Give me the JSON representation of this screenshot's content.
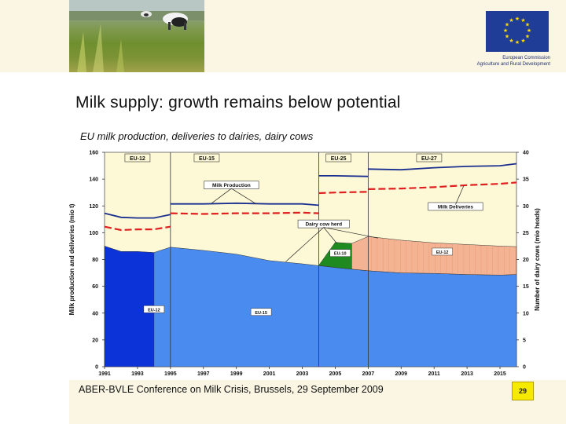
{
  "header": {
    "photo_alt": "cows grazing in pasture",
    "eu_logo_icon": "eu-flag-stars-icon",
    "eu_line1": "European Commission",
    "eu_line2": "Agriculture and Rural Development"
  },
  "slide": {
    "title": "Milk supply: growth remains below potential",
    "footer": "ABER-BVLE Conference on Milk Crisis, Brussels, 29 September 2009",
    "page_number": "29"
  },
  "chart_data": {
    "type": "area",
    "title": "EU milk production, deliveries to dairies, dairy cows",
    "ylabel": "Milk production and deliveries (mio t)",
    "y2label": "Number of dairy cows (mio heads)",
    "ylim": [
      0,
      160
    ],
    "y2lim": [
      0,
      40
    ],
    "yticks": [
      "0",
      "20",
      "40",
      "60",
      "80",
      "100",
      "120",
      "140",
      "160"
    ],
    "y2ticks": [
      "0",
      "5",
      "10",
      "15",
      "20",
      "25",
      "30",
      "35",
      "40"
    ],
    "xlim": [
      1991,
      2016
    ],
    "xticks": [
      "1991",
      "1993",
      "1995",
      "1997",
      "1999",
      "2001",
      "2003",
      "2005",
      "2007",
      "2009",
      "2011",
      "2013",
      "2015"
    ],
    "background": "#fdf9d6",
    "dividers": [
      1995,
      2004,
      2007
    ],
    "period_labels": [
      {
        "text": "EU-12",
        "x": 1993
      },
      {
        "text": "EU-15",
        "x": 1997.2
      },
      {
        "text": "EU-25",
        "x": 2005.2
      },
      {
        "text": "EU-27",
        "x": 2010.7
      }
    ],
    "area_labels": [
      {
        "text": "EU-12",
        "x": 1994,
        "y": 42
      },
      {
        "text": "EU-15",
        "x": 2000.5,
        "y": 40
      },
      {
        "text": "EU-10",
        "x": 2005.3,
        "y": 84
      },
      {
        "text": "EU-12",
        "x": 2011.5,
        "y": 85
      }
    ],
    "annotations": [
      {
        "text": "Milk Production",
        "x": 1998.7,
        "y": 135
      },
      {
        "text": "Milk Deliveries",
        "x": 2012.3,
        "y": 119
      },
      {
        "text": "Dairy cow herd",
        "x": 2004.3,
        "y": 106
      }
    ],
    "series": [
      {
        "name": "Milk Production",
        "segment": "EU-12",
        "kind": "line",
        "axis": "y",
        "color": "#1a2f8f",
        "x": [
          1991,
          1992,
          1993,
          1994,
          1995
        ],
        "y": [
          114.5,
          111.5,
          111.0,
          111.0,
          113.5
        ]
      },
      {
        "name": "Milk Production",
        "segment": "EU-15",
        "kind": "line",
        "axis": "y",
        "color": "#1a2f8f",
        "x": [
          1995,
          1997,
          1999,
          2001,
          2003,
          2004
        ],
        "y": [
          121.5,
          121.5,
          122.0,
          121.5,
          121.5,
          120.5
        ]
      },
      {
        "name": "Milk Production",
        "segment": "EU-25",
        "kind": "line",
        "axis": "y",
        "color": "#1a2f8f",
        "x": [
          2004,
          2005,
          2007
        ],
        "y": [
          142.5,
          142.5,
          142.0
        ]
      },
      {
        "name": "Milk Production",
        "segment": "EU-27",
        "kind": "line",
        "axis": "y",
        "color": "#1a2f8f",
        "x": [
          2007,
          2009,
          2011,
          2013,
          2015,
          2016
        ],
        "y": [
          147.5,
          147.0,
          148.5,
          149.5,
          150.0,
          151.5
        ]
      },
      {
        "name": "Milk Deliveries",
        "segment": "EU-12",
        "kind": "dashed",
        "axis": "y",
        "color": "#e02020",
        "x": [
          1991,
          1992,
          1993,
          1994,
          1995
        ],
        "y": [
          104.5,
          102.0,
          102.5,
          102.5,
          104.5
        ]
      },
      {
        "name": "Milk Deliveries",
        "segment": "EU-15",
        "kind": "dashed",
        "axis": "y",
        "color": "#e02020",
        "x": [
          1995,
          1997,
          1999,
          2001,
          2003,
          2004
        ],
        "y": [
          114.5,
          114.0,
          114.5,
          114.5,
          115.0,
          114.5
        ]
      },
      {
        "name": "Milk Deliveries",
        "segment": "EU-25",
        "kind": "dashed",
        "axis": "y",
        "color": "#e02020",
        "x": [
          2004,
          2005,
          2007
        ],
        "y": [
          129.5,
          130.0,
          130.5
        ]
      },
      {
        "name": "Milk Deliveries",
        "segment": "EU-27",
        "kind": "dashed",
        "axis": "y",
        "color": "#e02020",
        "x": [
          2007,
          2009,
          2011,
          2013,
          2015,
          2016
        ],
        "y": [
          132.5,
          133.0,
          134.0,
          135.5,
          136.5,
          137.5
        ]
      },
      {
        "name": "Dairy cow herd EU-12",
        "kind": "area",
        "axis": "y2",
        "color": "#0b33d8",
        "x": [
          1991,
          1992,
          1993,
          1994,
          1995
        ],
        "upper": [
          22.5,
          21.5,
          21.5,
          21.3,
          0
        ],
        "lower": [
          0,
          0,
          0,
          0,
          0
        ]
      },
      {
        "name": "Dairy cow herd EU-15",
        "kind": "area",
        "axis": "y2",
        "color": "#4a8bf0",
        "x": [
          1994,
          1995,
          1997,
          1999,
          2001,
          2003,
          2005,
          2007,
          2009,
          2011,
          2013,
          2015,
          2016
        ],
        "upper": [
          21.3,
          22.3,
          21.7,
          21.0,
          19.8,
          19.2,
          18.5,
          17.9,
          17.5,
          17.4,
          17.2,
          17.1,
          17.2
        ],
        "lower": [
          0,
          0,
          0,
          0,
          0,
          0,
          0,
          0,
          0,
          0,
          0,
          0,
          0
        ]
      },
      {
        "name": "Dairy cow herd EU-10",
        "kind": "area",
        "axis": "y2",
        "color": "#1f8a1f",
        "x": [
          2004,
          2005,
          2006,
          2007
        ],
        "upper": [
          18.9,
          23.2,
          23.0,
          17.9
        ],
        "lower": [
          18.9,
          18.5,
          18.2,
          17.9
        ]
      },
      {
        "name": "Dairy cow herd EU-12 (2007+)",
        "kind": "area",
        "axis": "y2",
        "color": "#f4b493",
        "x": [
          2006,
          2007,
          2009,
          2011,
          2013,
          2015,
          2016
        ],
        "upper": [
          23.0,
          24.3,
          23.6,
          23.1,
          22.8,
          22.5,
          22.4
        ],
        "lower": [
          18.2,
          17.9,
          17.5,
          17.4,
          17.2,
          17.1,
          17.2
        ]
      }
    ]
  }
}
